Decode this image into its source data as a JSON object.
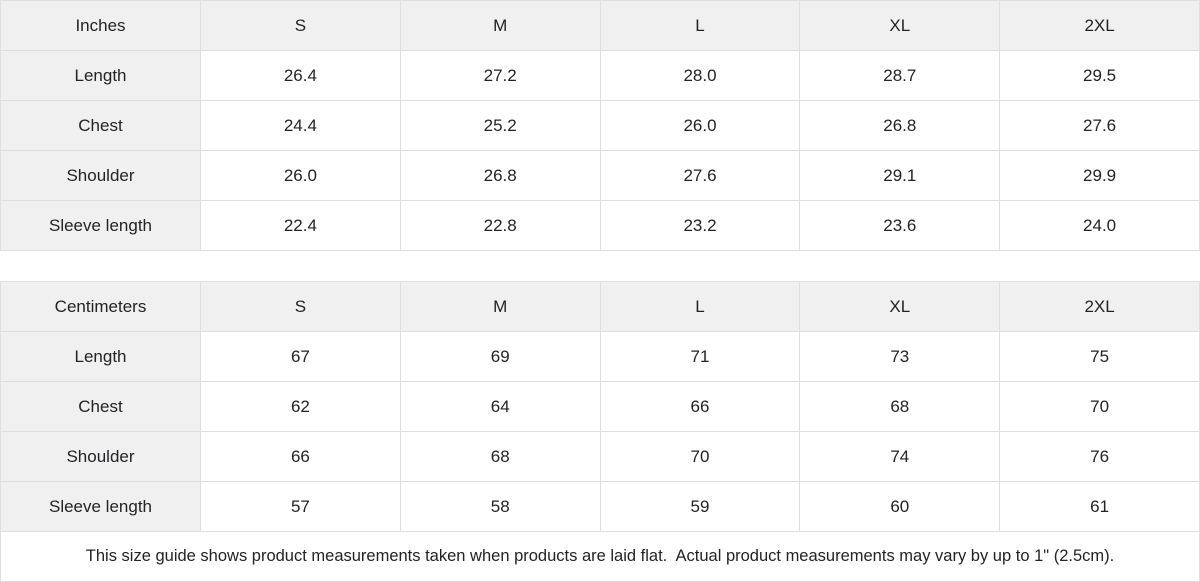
{
  "tables": [
    {
      "unit_label": "Inches",
      "sizes": [
        "S",
        "M",
        "L",
        "XL",
        "2XL"
      ],
      "rows": [
        {
          "label": "Length",
          "values": [
            "26.4",
            "27.2",
            "28.0",
            "28.7",
            "29.5"
          ]
        },
        {
          "label": "Chest",
          "values": [
            "24.4",
            "25.2",
            "26.0",
            "26.8",
            "27.6"
          ]
        },
        {
          "label": "Shoulder",
          "values": [
            "26.0",
            "26.8",
            "27.6",
            "29.1",
            "29.9"
          ]
        },
        {
          "label": "Sleeve length",
          "values": [
            "22.4",
            "22.8",
            "23.2",
            "23.6",
            "24.0"
          ]
        }
      ]
    },
    {
      "unit_label": "Centimeters",
      "sizes": [
        "S",
        "M",
        "L",
        "XL",
        "2XL"
      ],
      "rows": [
        {
          "label": "Length",
          "values": [
            "67",
            "69",
            "71",
            "73",
            "75"
          ]
        },
        {
          "label": "Chest",
          "values": [
            "62",
            "64",
            "66",
            "68",
            "70"
          ]
        },
        {
          "label": "Shoulder",
          "values": [
            "66",
            "68",
            "70",
            "74",
            "76"
          ]
        },
        {
          "label": "Sleeve length",
          "values": [
            "57",
            "58",
            "59",
            "60",
            "61"
          ]
        }
      ]
    }
  ],
  "footer": {
    "note": "This size guide shows product measurements taken when products are laid flat.  Actual product measurements may vary by up to 1\" (2.5cm)."
  },
  "colors": {
    "header_bg": "#f0f0f0",
    "border": "#dedede",
    "text": "#212326",
    "cell_bg": "#ffffff"
  }
}
